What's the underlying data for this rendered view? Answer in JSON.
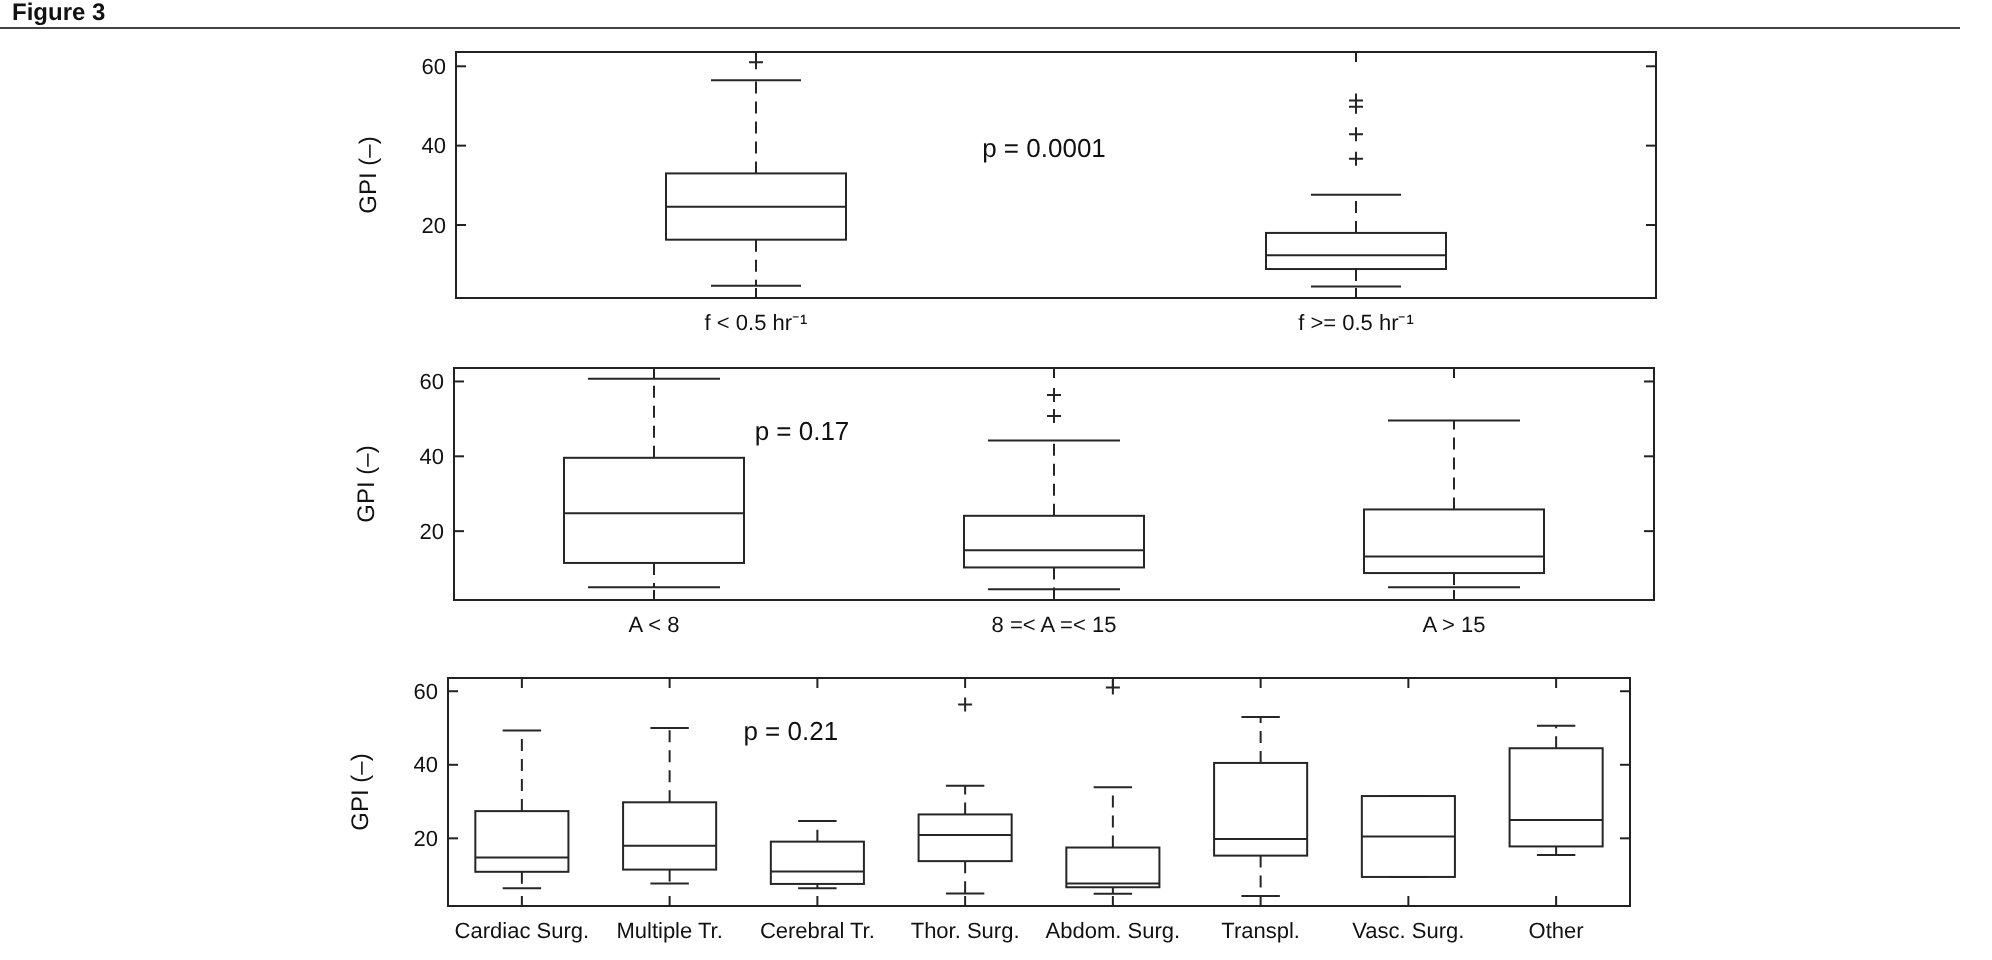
{
  "chart_data": [
    {
      "type": "other",
      "title": "Figure 3"
    },
    {
      "type": "box",
      "ylabel": "GPI (–)",
      "categories": [
        "f < 0.5 hr⁻¹",
        "f >= 0.5 hr⁻¹"
      ],
      "boxes": [
        {
          "low": 4.7,
          "q1": 16.3,
          "median": 24.6,
          "q3": 33,
          "high": 56.5,
          "outliers": [
            61
          ]
        },
        {
          "low": 4.5,
          "q1": 8.9,
          "median": 12.4,
          "q3": 18,
          "high": 27.6,
          "outliers": [
            36.7,
            42.9,
            49.8,
            51.4
          ]
        }
      ],
      "color": "#262626",
      "marker": "cross",
      "ylim": [
        1.6,
        63.6
      ],
      "yticks": [
        20,
        40,
        60
      ],
      "annotations": [
        "p = 0.0001"
      ]
    },
    {
      "type": "box",
      "ylabel": "GPI (–)",
      "categories": [
        "A < 8",
        "8 =< A =< 15",
        "A > 15"
      ],
      "boxes": [
        {
          "low": 5,
          "q1": 11.5,
          "median": 24.8,
          "q3": 39.6,
          "high": 60.7
        },
        {
          "low": 4.5,
          "q1": 10.3,
          "median": 14.9,
          "q3": 24.1,
          "high": 44.2,
          "outliers": [
            50.8,
            56.4
          ]
        },
        {
          "low": 5,
          "q1": 8.8,
          "median": 13.2,
          "q3": 25.8,
          "high": 49.6
        }
      ],
      "color": "#262626",
      "marker": "cross",
      "ylim": [
        1.6,
        63.6
      ],
      "yticks": [
        20,
        40,
        60
      ],
      "annotations": [
        "p = 0.17"
      ]
    },
    {
      "type": "box",
      "ylabel": "GPI (–)",
      "categories": [
        "Cardiac Surg.",
        "Multiple Tr.",
        "Cerebral Tr.",
        "Thor. Surg.",
        "Abdom. Surg.",
        "Transpl.",
        "Vasc. Surg.",
        "Other"
      ],
      "boxes": [
        {
          "low": 6.4,
          "q1": 10.9,
          "median": 14.8,
          "q3": 27.4,
          "high": 49.3
        },
        {
          "low": 7.7,
          "q1": 11.5,
          "median": 18,
          "q3": 29.8,
          "high": 50
        },
        {
          "low": 6.4,
          "q1": 7.6,
          "median": 11,
          "q3": 19.1,
          "high": 24.7
        },
        {
          "low": 5,
          "q1": 13.8,
          "median": 20.9,
          "q3": 26.5,
          "high": 34.3,
          "outliers": [
            56.4
          ]
        },
        {
          "low": 4.9,
          "q1": 6.7,
          "median": 7.7,
          "q3": 17.5,
          "high": 33.9,
          "outliers": [
            61
          ]
        },
        {
          "low": 4.3,
          "q1": 15.3,
          "median": 19.8,
          "q3": 40.5,
          "high": 53
        },
        {
          "low": 9.5,
          "q1": 9.5,
          "median": 20.5,
          "q3": 31.5,
          "high": 31.5
        },
        {
          "low": 15.5,
          "q1": 17.8,
          "median": 25,
          "q3": 44.5,
          "high": 50.6
        }
      ],
      "color": "#262626",
      "marker": "cross",
      "ylim": [
        1.6,
        63.6
      ],
      "yticks": [
        20,
        40,
        60
      ],
      "annotations": [
        "p = 0.21"
      ]
    }
  ]
}
